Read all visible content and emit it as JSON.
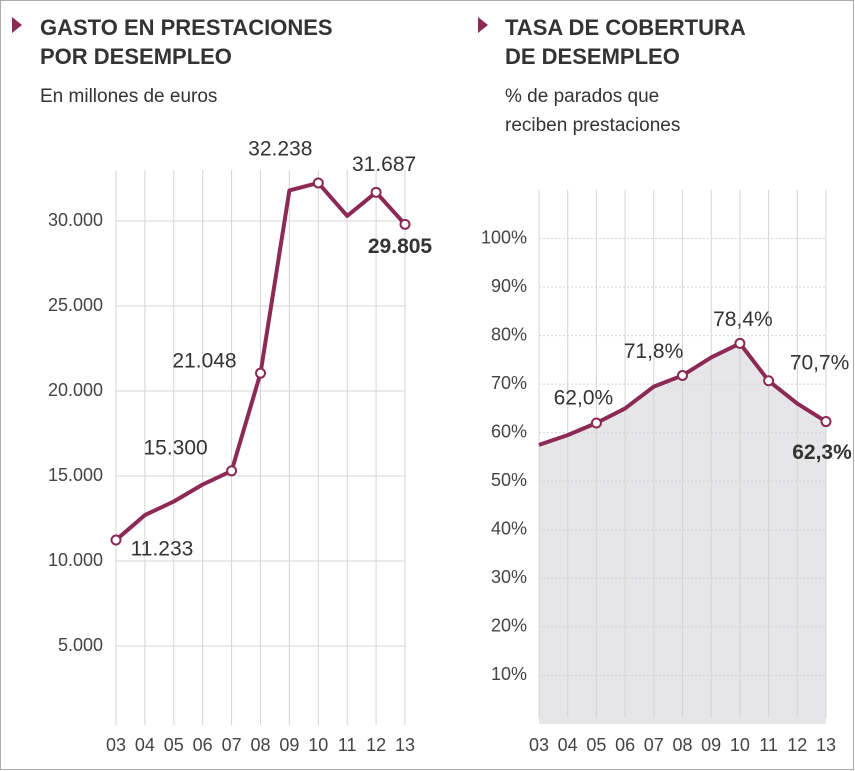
{
  "chart_data": [
    {
      "type": "line",
      "title": [
        "GASTO EN PRESTACIONES",
        "POR DESEMPLEO"
      ],
      "subtitle": [
        "En millones de euros"
      ],
      "categories": [
        "03",
        "04",
        "05",
        "06",
        "07",
        "08",
        "09",
        "10",
        "11",
        "12",
        "13"
      ],
      "series": [
        {
          "name": null,
          "color": "#8c2a55",
          "values": [
            11233,
            12700,
            13500,
            14500,
            15300,
            21048,
            31800,
            32238,
            30300,
            31687,
            29805
          ],
          "value_labels": [
            "11.233",
            null,
            null,
            null,
            "15.300",
            "21.048",
            null,
            "32.238",
            null,
            "31.687",
            "29.805"
          ]
        }
      ],
      "ylim": [
        0,
        33000
      ],
      "yticks": [
        {
          "value": 5000,
          "label": "5.000"
        },
        {
          "value": 10000,
          "label": "10.000"
        },
        {
          "value": 15000,
          "label": "15.000"
        },
        {
          "value": 20000,
          "label": "20.000"
        },
        {
          "value": 25000,
          "label": "25.000"
        },
        {
          "value": 30000,
          "label": "30.000"
        }
      ],
      "grid": true,
      "area": false
    },
    {
      "type": "line",
      "title": [
        "TASA DE COBERTURA",
        "DE DESEMPLEO"
      ],
      "subtitle": [
        "% de parados que",
        "reciben prestaciones"
      ],
      "categories": [
        "03",
        "04",
        "05",
        "06",
        "07",
        "08",
        "09",
        "10",
        "11",
        "12",
        "13"
      ],
      "series": [
        {
          "name": null,
          "color": "#8c2a55",
          "values": [
            57.5,
            59.5,
            62.0,
            65.0,
            69.5,
            71.8,
            75.5,
            78.4,
            70.7,
            66.0,
            62.3
          ],
          "value_labels": [
            null,
            null,
            "62,0%",
            null,
            null,
            "71,8%",
            null,
            "78,4%",
            "70,7%",
            null,
            "62,3%"
          ]
        }
      ],
      "ylim": [
        0,
        110
      ],
      "yticks": [
        {
          "value": 10,
          "label": "10%"
        },
        {
          "value": 20,
          "label": "20%"
        },
        {
          "value": 30,
          "label": "30%"
        },
        {
          "value": 40,
          "label": "40%"
        },
        {
          "value": 50,
          "label": "50%"
        },
        {
          "value": 60,
          "label": "60%"
        },
        {
          "value": 70,
          "label": "70%"
        },
        {
          "value": 80,
          "label": "80%"
        },
        {
          "value": 90,
          "label": "90%"
        },
        {
          "value": 100,
          "label": "100%"
        }
      ],
      "grid": true,
      "area": true
    }
  ]
}
